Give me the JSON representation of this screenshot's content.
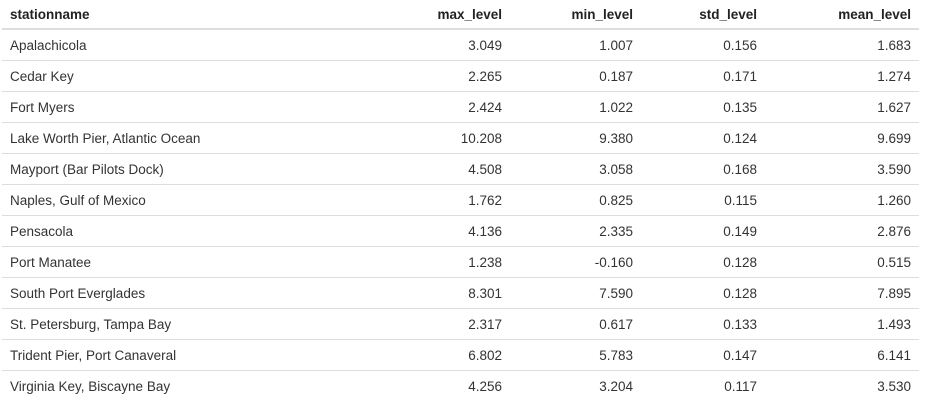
{
  "table": {
    "columns": [
      {
        "key": "stationname",
        "label": "stationname",
        "align": "left"
      },
      {
        "key": "max_level",
        "label": "max_level",
        "align": "right"
      },
      {
        "key": "min_level",
        "label": "min_level",
        "align": "right"
      },
      {
        "key": "std_level",
        "label": "std_level",
        "align": "right"
      },
      {
        "key": "mean_level",
        "label": "mean_level",
        "align": "right"
      }
    ],
    "rows": [
      [
        "Apalachicola",
        "3.049",
        "1.007",
        "0.156",
        "1.683"
      ],
      [
        "Cedar Key",
        "2.265",
        "0.187",
        "0.171",
        "1.274"
      ],
      [
        "Fort Myers",
        "2.424",
        "1.022",
        "0.135",
        "1.627"
      ],
      [
        "Lake Worth Pier, Atlantic Ocean",
        "10.208",
        "9.380",
        "0.124",
        "9.699"
      ],
      [
        "Mayport (Bar Pilots Dock)",
        "4.508",
        "3.058",
        "0.168",
        "3.590"
      ],
      [
        "Naples, Gulf of Mexico",
        "1.762",
        "0.825",
        "0.115",
        "1.260"
      ],
      [
        "Pensacola",
        "4.136",
        "2.335",
        "0.149",
        "2.876"
      ],
      [
        "Port Manatee",
        "1.238",
        "-0.160",
        "0.128",
        "0.515"
      ],
      [
        "South Port Everglades",
        "8.301",
        "7.590",
        "0.128",
        "7.895"
      ],
      [
        "St. Petersburg, Tampa Bay",
        "2.317",
        "0.617",
        "0.133",
        "1.493"
      ],
      [
        "Trident Pier, Port Canaveral",
        "6.802",
        "5.783",
        "0.147",
        "6.141"
      ],
      [
        "Virginia Key, Biscayne Bay",
        "4.256",
        "3.204",
        "0.117",
        "3.530"
      ]
    ]
  }
}
